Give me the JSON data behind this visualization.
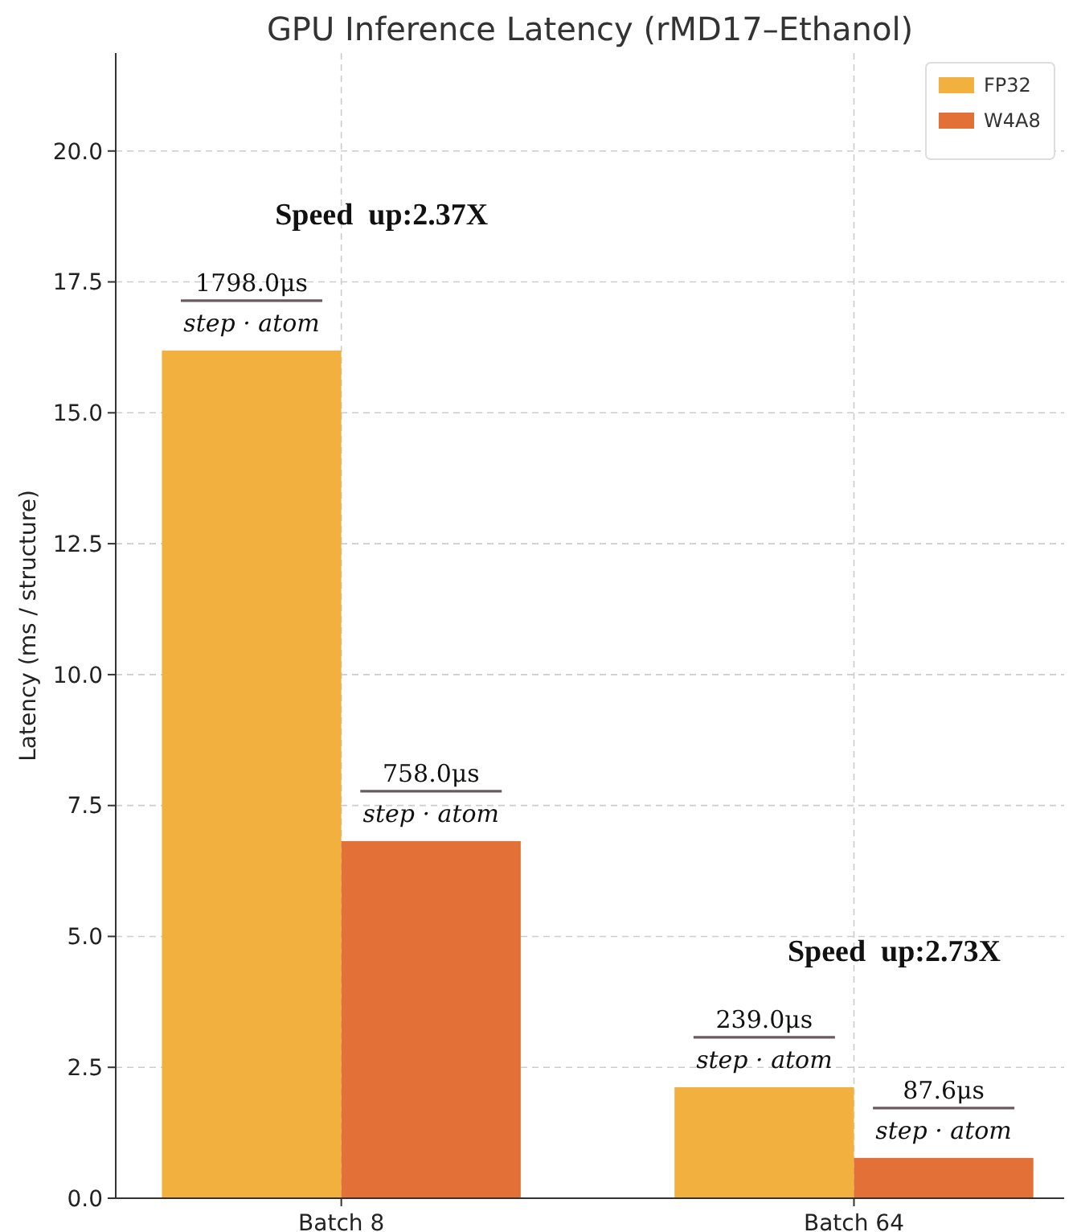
{
  "chart_data": {
    "type": "bar",
    "title": "GPU Inference Latency (rMD17–Ethanol)",
    "ylabel": "Latency (ms / structure)",
    "categories": [
      "Batch 8",
      "Batch 64"
    ],
    "series": [
      {
        "name": "FP32",
        "color": "#f2b03f",
        "values": [
          16.19,
          2.12
        ]
      },
      {
        "name": "W4A8",
        "color": "#e37137",
        "values": [
          6.82,
          0.77
        ]
      }
    ],
    "ylim": [
      0,
      21.87
    ],
    "yticks": [
      {
        "value": 0,
        "label": "0.0"
      },
      {
        "value": 2.5,
        "label": "2.5"
      },
      {
        "value": 5,
        "label": "5.0"
      },
      {
        "value": 7.5,
        "label": "7.5"
      },
      {
        "value": 10,
        "label": "10.0"
      },
      {
        "value": 12.5,
        "label": "12.5"
      },
      {
        "value": 15,
        "label": "15.0"
      },
      {
        "value": 17.5,
        "label": "17.5"
      },
      {
        "value": 20,
        "label": "20.0"
      }
    ],
    "annotations": [
      "Speed  up:2.37X",
      "1798.0μs\nstep · atom",
      "758.0μs\nstep · atom",
      "Speed  up:2.73X",
      "239.0μs\nstep · atom",
      "87.6μs\nstep · atom"
    ],
    "grid": true,
    "legend": "top right"
  }
}
